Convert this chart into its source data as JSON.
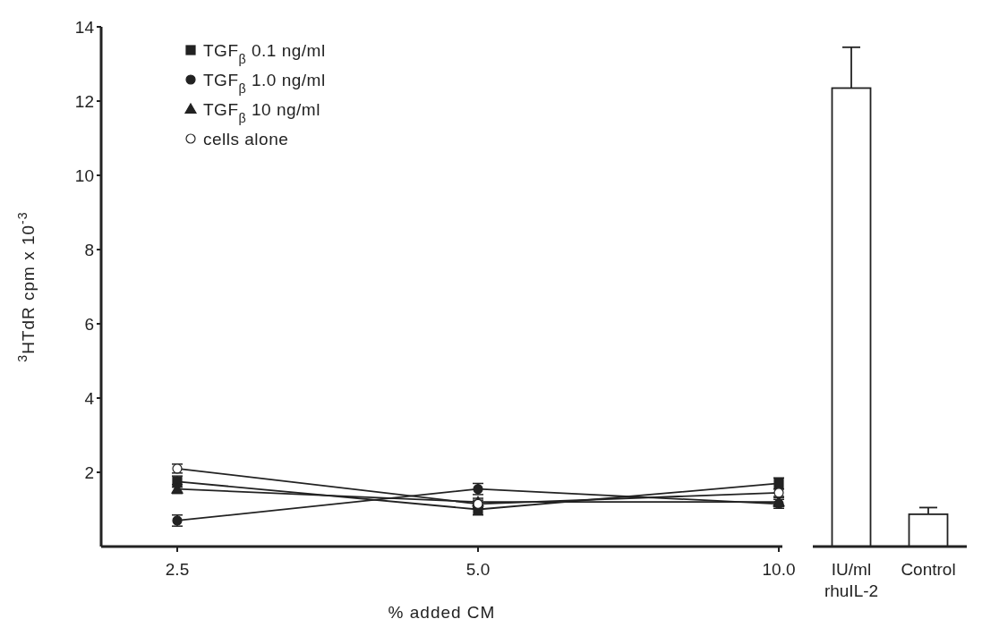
{
  "chart_data": [
    {
      "type": "line",
      "xlabel": "% added CM",
      "ylabel": "$^{3}$HTdR cpm x 10$^{-3}$",
      "categories": [
        "2.5",
        "5.0",
        "10.0"
      ],
      "ylim": [
        0,
        14
      ],
      "yticks": [
        2,
        4,
        6,
        8,
        10,
        12,
        14
      ],
      "legend": "top left",
      "grid": false,
      "series": [
        {
          "name": "TGF$_{β}$ 0.1 ng/ml",
          "color": "#222222",
          "marker": "square",
          "values": [
            1.75,
            1.0,
            1.7
          ],
          "errors": [
            0.15,
            0.15,
            0.15
          ]
        },
        {
          "name": "TGF$_{β}$ 1.0 ng/ml",
          "color": "#222222",
          "marker": "circle",
          "values": [
            0.7,
            1.55,
            1.15
          ],
          "errors": [
            0.15,
            0.15,
            0.12
          ]
        },
        {
          "name": "TGF$_{β}$ 10 ng/ml",
          "color": "#222222",
          "marker": "triangle",
          "values": [
            1.55,
            1.2,
            1.2
          ],
          "errors": [
            0.12,
            0.1,
            0.12
          ]
        },
        {
          "name": "cells alone",
          "color": "#ffffff",
          "marker": "circle",
          "values": [
            2.1,
            1.15,
            1.45
          ],
          "errors": [
            0.12,
            0.1,
            0.1
          ]
        }
      ]
    },
    {
      "type": "bar",
      "categories": [
        "IU/ml rhuIL-2",
        "Control"
      ],
      "ylim": [
        0,
        14
      ],
      "tick_labels": "x",
      "color": "#ffffff",
      "values": [
        12.35,
        0.87
      ],
      "errors": [
        [
          12.35,
          13.45
        ],
        [
          0.87,
          1.05
        ]
      ]
    }
  ]
}
